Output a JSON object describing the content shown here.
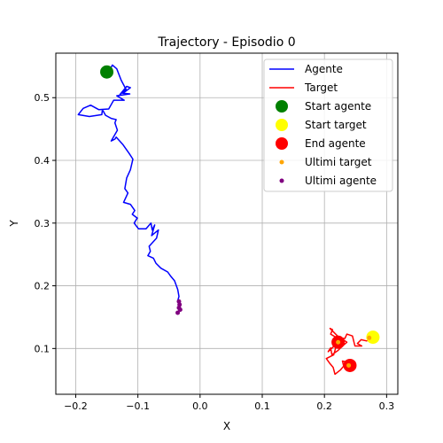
{
  "chart_data": {
    "type": "line",
    "title": "Trajectory - Episodio 0",
    "xlabel": "X",
    "ylabel": "Y",
    "xlim": [
      -0.232,
      0.318
    ],
    "ylim": [
      0.027,
      0.571
    ],
    "grid": true,
    "x_ticks": [
      -0.2,
      -0.1,
      0.0,
      0.1,
      0.2,
      0.3
    ],
    "x_tick_labels": [
      "−0.2",
      "−0.1",
      "0.0",
      "0.1",
      "0.2",
      "0.3"
    ],
    "y_ticks": [
      0.1,
      0.2,
      0.3,
      0.4,
      0.5
    ],
    "y_tick_labels": [
      "0.1",
      "0.2",
      "0.3",
      "0.4",
      "0.5"
    ],
    "legend": {
      "placement": "upper right",
      "entries": [
        {
          "label": "Agente",
          "kind": "line",
          "color": "#0000ff"
        },
        {
          "label": "Target",
          "kind": "line",
          "color": "#ff0000"
        },
        {
          "label": "Start agente",
          "kind": "marker",
          "color": "#008000"
        },
        {
          "label": "Start target",
          "kind": "marker",
          "color": "#ffff00"
        },
        {
          "label": "End agente",
          "kind": "marker",
          "color": "#ff0000"
        },
        {
          "label": "Ultimi target",
          "kind": "small-marker",
          "color": "#ffa500"
        },
        {
          "label": "Ultimi agente",
          "kind": "small-marker",
          "color": "#800080"
        }
      ]
    },
    "series": [
      {
        "name": "Agente",
        "color": "#0000ff",
        "points": [
          [
            -0.147,
            0.542
          ],
          [
            -0.141,
            0.552
          ],
          [
            -0.134,
            0.546
          ],
          [
            -0.127,
            0.528
          ],
          [
            -0.119,
            0.513
          ],
          [
            -0.129,
            0.505
          ],
          [
            -0.118,
            0.518
          ],
          [
            -0.112,
            0.516
          ],
          [
            -0.124,
            0.507
          ],
          [
            -0.113,
            0.506
          ],
          [
            -0.134,
            0.503
          ],
          [
            -0.122,
            0.496
          ],
          [
            -0.139,
            0.496
          ],
          [
            -0.147,
            0.482
          ],
          [
            -0.163,
            0.481
          ],
          [
            -0.176,
            0.488
          ],
          [
            -0.188,
            0.483
          ],
          [
            -0.196,
            0.473
          ],
          [
            -0.178,
            0.47
          ],
          [
            -0.158,
            0.473
          ],
          [
            -0.157,
            0.481
          ],
          [
            -0.152,
            0.472
          ],
          [
            -0.143,
            0.467
          ],
          [
            -0.135,
            0.465
          ],
          [
            -0.137,
            0.46
          ],
          [
            -0.133,
            0.448
          ],
          [
            -0.143,
            0.431
          ],
          [
            -0.137,
            0.434
          ],
          [
            -0.135,
            0.437
          ],
          [
            -0.124,
            0.425
          ],
          [
            -0.114,
            0.411
          ],
          [
            -0.108,
            0.402
          ],
          [
            -0.112,
            0.385
          ],
          [
            -0.118,
            0.372
          ],
          [
            -0.121,
            0.355
          ],
          [
            -0.116,
            0.348
          ],
          [
            -0.123,
            0.333
          ],
          [
            -0.112,
            0.33
          ],
          [
            -0.105,
            0.32
          ],
          [
            -0.109,
            0.314
          ],
          [
            -0.101,
            0.308
          ],
          [
            -0.106,
            0.3
          ],
          [
            -0.099,
            0.291
          ],
          [
            -0.087,
            0.291
          ],
          [
            -0.079,
            0.3
          ],
          [
            -0.077,
            0.289
          ],
          [
            -0.073,
            0.297
          ],
          [
            -0.078,
            0.28
          ],
          [
            -0.067,
            0.289
          ],
          [
            -0.07,
            0.276
          ],
          [
            -0.082,
            0.263
          ],
          [
            -0.08,
            0.255
          ],
          [
            -0.084,
            0.248
          ],
          [
            -0.075,
            0.244
          ],
          [
            -0.071,
            0.236
          ],
          [
            -0.063,
            0.228
          ],
          [
            -0.052,
            0.222
          ],
          [
            -0.047,
            0.215
          ],
          [
            -0.041,
            0.208
          ],
          [
            -0.036,
            0.194
          ],
          [
            -0.034,
            0.183
          ],
          [
            -0.036,
            0.176
          ],
          [
            -0.032,
            0.17
          ],
          [
            -0.034,
            0.166
          ],
          [
            -0.032,
            0.162
          ]
        ]
      },
      {
        "name": "Target",
        "color": "#ff0000",
        "points": [
          [
            0.274,
            0.117
          ],
          [
            0.268,
            0.112
          ],
          [
            0.259,
            0.114
          ],
          [
            0.253,
            0.108
          ],
          [
            0.26,
            0.104
          ],
          [
            0.249,
            0.104
          ],
          [
            0.245,
            0.12
          ],
          [
            0.236,
            0.123
          ],
          [
            0.233,
            0.116
          ],
          [
            0.22,
            0.117
          ],
          [
            0.21,
            0.123
          ],
          [
            0.213,
            0.13
          ],
          [
            0.209,
            0.132
          ],
          [
            0.221,
            0.12
          ],
          [
            0.226,
            0.117
          ],
          [
            0.236,
            0.11
          ],
          [
            0.228,
            0.103
          ],
          [
            0.222,
            0.097
          ],
          [
            0.212,
            0.09
          ],
          [
            0.21,
            0.101
          ],
          [
            0.206,
            0.095
          ],
          [
            0.22,
            0.108
          ],
          [
            0.215,
            0.09
          ],
          [
            0.203,
            0.084
          ],
          [
            0.208,
            0.077
          ],
          [
            0.214,
            0.07
          ],
          [
            0.217,
            0.059
          ],
          [
            0.226,
            0.066
          ],
          [
            0.231,
            0.072
          ],
          [
            0.229,
            0.08
          ],
          [
            0.238,
            0.078
          ],
          [
            0.245,
            0.074
          ],
          [
            0.233,
            0.07
          ],
          [
            0.244,
            0.07
          ],
          [
            0.238,
            0.072
          ]
        ]
      }
    ],
    "markers": [
      {
        "name": "Start agente",
        "x": -0.15,
        "y": 0.541,
        "color": "#008000",
        "size": "large"
      },
      {
        "name": "Start target",
        "x": 0.278,
        "y": 0.118,
        "color": "#ffff00",
        "size": "large"
      },
      {
        "name": "End agente",
        "x": 0.222,
        "y": 0.11,
        "color": "#ff0000",
        "size": "large"
      },
      {
        "name": "End agente",
        "x": 0.241,
        "y": 0.073,
        "color": "#ff0000",
        "size": "large"
      }
    ],
    "ultimi_target": [
      [
        0.272,
        0.117
      ],
      [
        0.239,
        0.073
      ],
      [
        0.222,
        0.11
      ]
    ],
    "ultimi_agente": [
      [
        -0.034,
        0.175
      ],
      [
        -0.033,
        0.17
      ],
      [
        -0.034,
        0.165
      ],
      [
        -0.032,
        0.162
      ],
      [
        -0.036,
        0.157
      ]
    ]
  }
}
